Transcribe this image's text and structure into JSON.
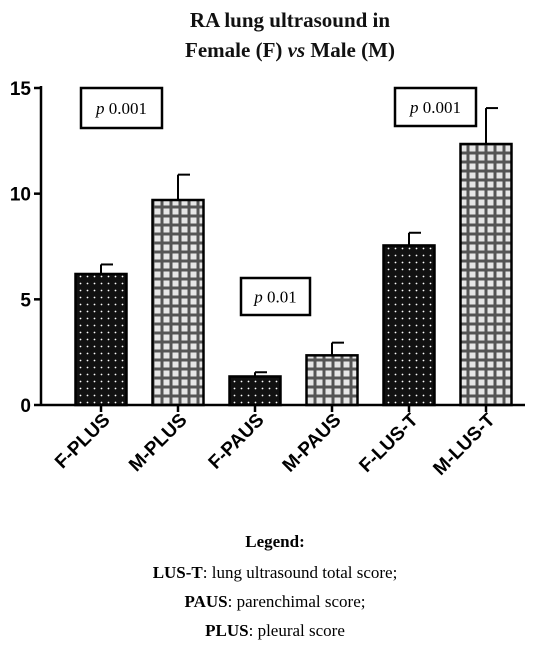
{
  "chart_data": {
    "type": "bar",
    "title_line1": "RA lung ultrasound in",
    "title_line2_parts": [
      "Female (F) ",
      "vs",
      " Male (M)"
    ],
    "xlabel": "",
    "ylabel": "",
    "ylim": [
      0,
      15
    ],
    "yticks": [
      0,
      5,
      10,
      15
    ],
    "categories": [
      "F-PLUS",
      "M-PLUS",
      "F-PAUS",
      "M-PAUS",
      "F-LUS-T",
      "M-LUS-T"
    ],
    "values": [
      6.2,
      9.7,
      1.35,
      2.35,
      7.55,
      12.35
    ],
    "errors": [
      0.45,
      1.2,
      0.2,
      0.6,
      0.6,
      1.7
    ],
    "patterns": [
      "dots",
      "grid",
      "dots",
      "grid",
      "dots",
      "grid"
    ],
    "annotations": [
      {
        "p": "p",
        "value": "0.001",
        "between": [
          "F-PLUS",
          "M-PLUS"
        ]
      },
      {
        "p": "p",
        "value": "0.01",
        "between": [
          "F-PAUS",
          "M-PAUS"
        ]
      },
      {
        "p": "p",
        "value": "0.001",
        "between": [
          "F-LUS-T",
          "M-LUS-T"
        ]
      }
    ],
    "grid": false,
    "colors": {
      "dark_bar": "#111111",
      "grid_bar": "#555555",
      "cell": "#e6e6e6",
      "dot": "#ffffff"
    }
  },
  "legend": {
    "heading": "Legend:",
    "items": [
      {
        "term": "LUS-T",
        "sep": ":",
        "desc": " lung ultrasound total score;"
      },
      {
        "term": "PAUS",
        "sep": ":",
        "desc": " parenchimal score;"
      },
      {
        "term": "PLUS",
        "sep": ":",
        "desc": " pleural score"
      }
    ]
  }
}
